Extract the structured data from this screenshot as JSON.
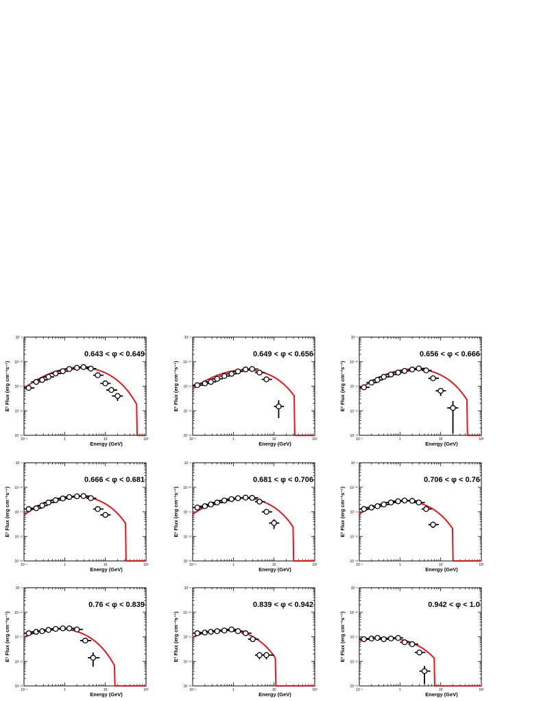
{
  "figure": {
    "x_axis_title": "Energy (GeV)",
    "y_axis_title": "E² Flux (erg cm⁻²s⁻¹)",
    "x_tick_labels": [
      "10⁻¹",
      "1",
      "10",
      "10²"
    ],
    "y_tick_labels": [
      "10⁻⁹",
      "10⁻¹⁰",
      "10⁻¹¹",
      "10⁻¹²",
      "10⁻¹³"
    ]
  },
  "colors": {
    "model": "#e8141b",
    "points": "#000000",
    "frame": "#000000"
  },
  "chart_data": [
    {
      "type": "scatter",
      "title": "0.643 < φ < 0.649",
      "xlabel": "Energy (GeV)",
      "ylabel": "E² Flux (erg cm⁻²s⁻¹)",
      "xlim": [
        0.1,
        100
      ],
      "ylim": [
        1e-13,
        1e-09
      ],
      "xscale": "log",
      "yscale": "log",
      "points": [
        [
          0.13,
          8.5e-12
        ],
        [
          0.2,
          1.5e-11
        ],
        [
          0.28,
          1.8e-11
        ],
        [
          0.4,
          2.4e-11
        ],
        [
          0.6,
          3.3e-11
        ],
        [
          0.9,
          4.1e-11
        ],
        [
          1.3,
          5e-11
        ],
        [
          2.0,
          5.6e-11
        ],
        [
          2.9,
          6e-11
        ],
        [
          4.4,
          5.2e-11
        ],
        [
          6.5,
          2.8e-11
        ],
        [
          10.0,
          1.3e-11
        ],
        [
          14.0,
          7e-12
        ],
        [
          20.0,
          4e-12
        ]
      ],
      "xerr_lo": [
        0.03,
        0.05,
        0.07,
        0.1,
        0.15,
        0.22,
        0.3,
        0.4,
        0.7,
        1.0,
        1.5,
        2.5,
        3.5,
        5.5
      ],
      "xerr_hi": [
        0.05,
        0.07,
        0.1,
        0.15,
        0.22,
        0.3,
        0.45,
        0.8,
        1.2,
        1.6,
        2.5,
        3.5,
        5.5,
        7.0
      ],
      "yerr_lo": [
        0,
        0,
        0,
        0,
        0,
        0,
        0,
        0,
        0,
        0,
        0,
        0,
        0,
        1.5e-12
      ],
      "yerr_hi": [
        0,
        0,
        0,
        0,
        0,
        0,
        0,
        0,
        0,
        0,
        0,
        0,
        0,
        1e-12
      ],
      "model": {
        "shape": "logparabola_expcutoff",
        "peak_energy": 2.9,
        "peak_flux": 5.8e-11,
        "curvature": 0.18,
        "cutoff": 9.5,
        "floor_at": 60
      }
    },
    {
      "type": "scatter",
      "title": "0.649 < φ < 0.656",
      "xlabel": "Energy (GeV)",
      "ylabel": "E² Flux (erg cm⁻²s⁻¹)",
      "xlim": [
        0.1,
        100
      ],
      "ylim": [
        1e-13,
        1e-09
      ],
      "xscale": "log",
      "yscale": "log",
      "points": [
        [
          0.13,
          1.1e-11
        ],
        [
          0.2,
          1.3e-11
        ],
        [
          0.28,
          1.5e-11
        ],
        [
          0.4,
          2e-11
        ],
        [
          0.6,
          2.6e-11
        ],
        [
          0.9,
          3.2e-11
        ],
        [
          1.3,
          4e-11
        ],
        [
          2.0,
          4.8e-11
        ],
        [
          2.9,
          5e-11
        ],
        [
          4.4,
          3.6e-11
        ],
        [
          6.5,
          1.9e-11
        ],
        [
          13.0,
          1.5e-12
        ]
      ],
      "xerr_lo": [
        0.03,
        0.05,
        0.07,
        0.1,
        0.15,
        0.22,
        0.3,
        0.4,
        0.7,
        1.0,
        1.5,
        3.0
      ],
      "xerr_hi": [
        0.05,
        0.07,
        0.1,
        0.15,
        0.22,
        0.3,
        0.45,
        0.8,
        1.2,
        1.6,
        2.5,
        4.5
      ],
      "yerr_lo": [
        0,
        0,
        0,
        0,
        0,
        0,
        0,
        0,
        0,
        0,
        0,
        1e-12
      ],
      "yerr_hi": [
        0,
        0,
        0,
        0,
        0,
        0,
        0,
        0,
        0,
        0,
        0,
        1.2e-12
      ],
      "model": {
        "shape": "logparabola_expcutoff",
        "peak_energy": 2.5,
        "peak_flux": 4.6e-11,
        "curvature": 0.18,
        "cutoff": 7.0,
        "floor_at": 32
      }
    },
    {
      "type": "scatter",
      "title": "0.656 < φ < 0.666",
      "xlabel": "Energy (GeV)",
      "ylabel": "E² Flux (erg cm⁻²s⁻¹)",
      "xlim": [
        0.1,
        100
      ],
      "ylim": [
        1e-13,
        1e-09
      ],
      "xscale": "log",
      "yscale": "log",
      "points": [
        [
          0.13,
          9e-12
        ],
        [
          0.2,
          1.4e-11
        ],
        [
          0.28,
          1.8e-11
        ],
        [
          0.4,
          2.4e-11
        ],
        [
          0.6,
          3e-11
        ],
        [
          0.9,
          3.6e-11
        ],
        [
          1.3,
          4.2e-11
        ],
        [
          2.0,
          4.8e-11
        ],
        [
          2.9,
          5.3e-11
        ],
        [
          4.4,
          4.4e-11
        ],
        [
          6.5,
          2.1e-11
        ],
        [
          10.0,
          6.5e-12
        ],
        [
          20.0,
          1.3e-12
        ]
      ],
      "xerr_lo": [
        0.03,
        0.05,
        0.07,
        0.1,
        0.15,
        0.22,
        0.3,
        0.4,
        0.7,
        1.0,
        1.5,
        2.5,
        5.5
      ],
      "xerr_hi": [
        0.05,
        0.07,
        0.1,
        0.15,
        0.22,
        0.3,
        0.45,
        0.8,
        1.2,
        1.6,
        2.5,
        3.5,
        7.0
      ],
      "yerr_lo": [
        0,
        0,
        0,
        0,
        0,
        0,
        0,
        0,
        0,
        0,
        0,
        2.5e-12,
        1.18e-12
      ],
      "yerr_hi": [
        0,
        0,
        0,
        0,
        0,
        0,
        0,
        0,
        0,
        0,
        0,
        1.5e-12,
        1.2e-12
      ],
      "model": {
        "shape": "logparabola_expcutoff",
        "peak_energy": 2.8,
        "peak_flux": 5e-11,
        "curvature": 0.18,
        "cutoff": 8.5,
        "floor_at": 45
      }
    },
    {
      "type": "scatter",
      "title": "0.666 < φ < 0.681",
      "xlabel": "Energy (GeV)",
      "ylabel": "E² Flux (erg cm⁻²s⁻¹)",
      "xlim": [
        0.1,
        100
      ],
      "ylim": [
        1e-13,
        1e-09
      ],
      "xscale": "log",
      "yscale": "log",
      "points": [
        [
          0.13,
          1.3e-11
        ],
        [
          0.2,
          1.4e-11
        ],
        [
          0.28,
          1.8e-11
        ],
        [
          0.4,
          2.4e-11
        ],
        [
          0.6,
          3e-11
        ],
        [
          0.9,
          3.5e-11
        ],
        [
          1.3,
          4e-11
        ],
        [
          2.0,
          4.3e-11
        ],
        [
          2.9,
          4.4e-11
        ],
        [
          4.4,
          3.6e-11
        ],
        [
          6.5,
          1.3e-11
        ],
        [
          10.0,
          7.5e-12
        ]
      ],
      "xerr_lo": [
        0.03,
        0.05,
        0.07,
        0.1,
        0.15,
        0.22,
        0.3,
        0.4,
        0.7,
        1.0,
        1.5,
        2.5
      ],
      "xerr_hi": [
        0.05,
        0.07,
        0.1,
        0.15,
        0.22,
        0.3,
        0.45,
        0.8,
        1.2,
        1.6,
        2.5,
        3.5
      ],
      "yerr_lo": [
        0,
        0,
        0,
        0,
        0,
        0,
        0,
        0,
        0,
        0,
        0,
        0
      ],
      "yerr_hi": [
        0,
        0,
        0,
        0,
        0,
        0,
        0,
        0,
        0,
        0,
        0,
        0
      ],
      "model": {
        "shape": "logparabola_expcutoff",
        "peak_energy": 2.5,
        "peak_flux": 4.3e-11,
        "curvature": 0.18,
        "cutoff": 6.5,
        "floor_at": 32
      }
    },
    {
      "type": "scatter",
      "title": "0.681 < φ < 0.706",
      "xlabel": "Energy (GeV)",
      "ylabel": "E² Flux (erg cm⁻²s⁻¹)",
      "xlim": [
        0.1,
        100
      ],
      "ylim": [
        1e-13,
        1e-09
      ],
      "xscale": "log",
      "yscale": "log",
      "points": [
        [
          0.13,
          1.5e-11
        ],
        [
          0.2,
          1.7e-11
        ],
        [
          0.28,
          2e-11
        ],
        [
          0.4,
          2.4e-11
        ],
        [
          0.6,
          2.9e-11
        ],
        [
          0.9,
          3.3e-11
        ],
        [
          1.3,
          3.6e-11
        ],
        [
          2.0,
          3.8e-11
        ],
        [
          2.9,
          3.7e-11
        ],
        [
          4.4,
          2.6e-11
        ],
        [
          6.5,
          1e-11
        ],
        [
          10.0,
          3.5e-12
        ]
      ],
      "xerr_lo": [
        0.03,
        0.05,
        0.07,
        0.1,
        0.15,
        0.22,
        0.3,
        0.4,
        0.7,
        1.0,
        1.5,
        2.5
      ],
      "xerr_hi": [
        0.05,
        0.07,
        0.1,
        0.15,
        0.22,
        0.3,
        0.45,
        0.8,
        1.2,
        1.6,
        2.5,
        3.5
      ],
      "yerr_lo": [
        0,
        0,
        0,
        0,
        0,
        0,
        0,
        0,
        0,
        0,
        0,
        1.5e-12
      ],
      "yerr_hi": [
        0,
        0,
        0,
        0,
        0,
        0,
        0,
        0,
        0,
        0,
        0,
        1.5e-12
      ],
      "model": {
        "shape": "logparabola_expcutoff",
        "peak_energy": 2.0,
        "peak_flux": 3.7e-11,
        "curvature": 0.18,
        "cutoff": 6.0,
        "floor_at": 30
      }
    },
    {
      "type": "scatter",
      "title": "0.706 < φ < 0.76",
      "xlabel": "Energy (GeV)",
      "ylabel": "E² Flux (erg cm⁻²s⁻¹)",
      "xlim": [
        0.1,
        100
      ],
      "ylim": [
        1e-13,
        1e-09
      ],
      "xscale": "log",
      "yscale": "log",
      "points": [
        [
          0.13,
          1.3e-11
        ],
        [
          0.2,
          1.5e-11
        ],
        [
          0.28,
          1.7e-11
        ],
        [
          0.4,
          2e-11
        ],
        [
          0.6,
          2.4e-11
        ],
        [
          0.9,
          2.7e-11
        ],
        [
          1.3,
          2.9e-11
        ],
        [
          2.0,
          2.8e-11
        ],
        [
          2.9,
          2.4e-11
        ],
        [
          4.4,
          1.3e-11
        ],
        [
          6.5,
          3e-12
        ]
      ],
      "xerr_lo": [
        0.03,
        0.05,
        0.07,
        0.1,
        0.15,
        0.22,
        0.3,
        0.4,
        0.7,
        1.0,
        1.5
      ],
      "xerr_hi": [
        0.05,
        0.07,
        0.1,
        0.15,
        0.22,
        0.3,
        0.45,
        0.8,
        1.2,
        1.6,
        2.5
      ],
      "yerr_lo": [
        0,
        0,
        0,
        0,
        0,
        0,
        0,
        0,
        0,
        0,
        8e-13
      ],
      "yerr_hi": [
        0,
        0,
        0,
        0,
        0,
        0,
        0,
        0,
        0,
        0,
        1e-12
      ],
      "model": {
        "shape": "logparabola_expcutoff",
        "peak_energy": 1.5,
        "peak_flux": 2.8e-11,
        "curvature": 0.18,
        "cutoff": 4.0,
        "floor_at": 20
      }
    },
    {
      "type": "scatter",
      "title": "0.76 < φ < 0.839",
      "xlabel": "Energy (GeV)",
      "ylabel": "E² Flux (erg cm⁻²s⁻¹)",
      "xlim": [
        0.1,
        100
      ],
      "ylim": [
        1e-13,
        1e-09
      ],
      "xscale": "log",
      "yscale": "log",
      "points": [
        [
          0.13,
          1.4e-11
        ],
        [
          0.2,
          1.6e-11
        ],
        [
          0.28,
          1.7e-11
        ],
        [
          0.4,
          1.9e-11
        ],
        [
          0.6,
          2.1e-11
        ],
        [
          0.9,
          2.2e-11
        ],
        [
          1.3,
          2.2e-11
        ],
        [
          2.0,
          2e-11
        ],
        [
          3.2,
          7e-12
        ],
        [
          5.0,
          1.4e-12
        ]
      ],
      "xerr_lo": [
        0.03,
        0.05,
        0.07,
        0.1,
        0.15,
        0.22,
        0.3,
        0.4,
        0.8,
        1.3
      ],
      "xerr_hi": [
        0.05,
        0.07,
        0.1,
        0.15,
        0.22,
        0.3,
        0.45,
        0.8,
        1.3,
        2.2
      ],
      "yerr_lo": [
        0,
        0,
        0,
        0,
        0,
        0,
        0,
        0,
        0,
        8e-13
      ],
      "yerr_hi": [
        0,
        0,
        0,
        0,
        0,
        0,
        0,
        0,
        0,
        9e-13
      ],
      "model": {
        "shape": "logparabola_expcutoff",
        "peak_energy": 0.9,
        "peak_flux": 2.1e-11,
        "curvature": 0.18,
        "cutoff": 2.6,
        "floor_at": 17
      }
    },
    {
      "type": "scatter",
      "title": "0.839 < φ < 0.942",
      "xlabel": "Energy (GeV)",
      "ylabel": "E² Flux (erg cm⁻²s⁻¹)",
      "xlim": [
        0.1,
        100
      ],
      "ylim": [
        1e-13,
        1e-09
      ],
      "xscale": "log",
      "yscale": "log",
      "points": [
        [
          0.13,
          1.4e-11
        ],
        [
          0.2,
          1.5e-11
        ],
        [
          0.28,
          1.6e-11
        ],
        [
          0.4,
          1.7e-11
        ],
        [
          0.6,
          1.8e-11
        ],
        [
          0.9,
          2e-11
        ],
        [
          1.3,
          1.7e-11
        ],
        [
          2.0,
          1.4e-11
        ],
        [
          3.0,
          8e-12
        ],
        [
          4.4,
          1.8e-12
        ],
        [
          6.5,
          1.8e-12
        ]
      ],
      "xerr_lo": [
        0.03,
        0.05,
        0.07,
        0.1,
        0.15,
        0.22,
        0.3,
        0.4,
        0.7,
        1.0,
        1.5
      ],
      "xerr_hi": [
        0.05,
        0.07,
        0.1,
        0.15,
        0.22,
        0.3,
        0.45,
        0.8,
        1.2,
        1.6,
        3.5
      ],
      "yerr_lo": [
        0,
        0,
        0,
        0,
        0,
        0,
        0,
        0,
        0,
        6e-13,
        6e-13
      ],
      "yerr_hi": [
        0,
        0,
        0,
        0,
        0,
        0,
        0,
        0,
        0,
        6e-13,
        6e-13
      ],
      "model": {
        "shape": "logparabola_expcutoff",
        "peak_energy": 0.8,
        "peak_flux": 1.9e-11,
        "curvature": 0.18,
        "cutoff": 2.2,
        "floor_at": 11
      }
    },
    {
      "type": "scatter",
      "title": "0.942 < φ < 1.0",
      "xlabel": "Energy (GeV)",
      "ylabel": "E² Flux (erg cm⁻²s⁻¹)",
      "xlim": [
        0.1,
        100
      ],
      "ylim": [
        1e-13,
        1e-09
      ],
      "xscale": "log",
      "yscale": "log",
      "points": [
        [
          0.13,
          8e-12
        ],
        [
          0.2,
          8.5e-12
        ],
        [
          0.28,
          9e-12
        ],
        [
          0.4,
          8e-12
        ],
        [
          0.6,
          8.5e-12
        ],
        [
          0.9,
          9e-12
        ],
        [
          1.3,
          6e-12
        ],
        [
          2.0,
          5e-12
        ],
        [
          3.0,
          2.3e-12
        ],
        [
          4.0,
          4e-13
        ]
      ],
      "xerr_lo": [
        0.03,
        0.05,
        0.07,
        0.1,
        0.15,
        0.22,
        0.3,
        0.4,
        0.7,
        1.0
      ],
      "xerr_hi": [
        0.05,
        0.07,
        0.1,
        0.15,
        0.22,
        0.3,
        0.45,
        0.8,
        1.2,
        1.6
      ],
      "yerr_lo": [
        0,
        0,
        0,
        0,
        0,
        0,
        0,
        0,
        0,
        2.8e-13
      ],
      "yerr_hi": [
        0,
        0,
        0,
        0,
        0,
        0,
        0,
        0,
        0,
        2.5e-13
      ],
      "model": {
        "shape": "logparabola_expcutoff",
        "peak_energy": 0.55,
        "peak_flux": 8.8e-12,
        "curvature": 0.12,
        "cutoff": 1.8,
        "floor_at": 7
      }
    }
  ]
}
